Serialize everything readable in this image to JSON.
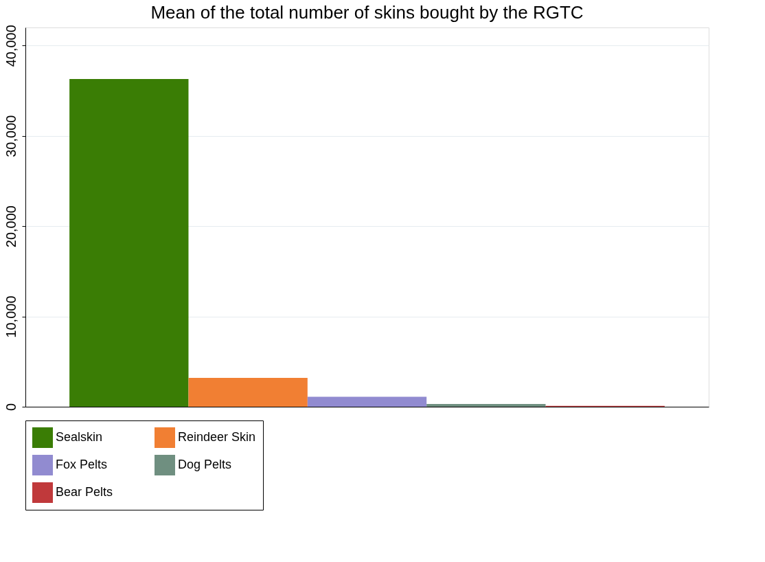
{
  "chart_data": {
    "type": "bar",
    "title": "Mean of the total number of skins bought by the RGTC",
    "categories": [
      null
    ],
    "series": [
      {
        "name": "Sealskin",
        "color": "#3a7d05",
        "values": [
          36300
        ]
      },
      {
        "name": "Reindeer Skin",
        "color": "#f17f33",
        "values": [
          3200
        ]
      },
      {
        "name": "Fox Pelts",
        "color": "#918bd0",
        "values": [
          1100
        ]
      },
      {
        "name": "Dog Pelts",
        "color": "#6f8f80",
        "values": [
          300
        ]
      },
      {
        "name": "Bear Pelts",
        "color": "#c0393b",
        "values": [
          100
        ]
      }
    ],
    "ylim": [
      0,
      42000
    ],
    "yticks": [
      {
        "value": 0,
        "label": "0"
      },
      {
        "value": 10000,
        "label": "10,000"
      },
      {
        "value": 20000,
        "label": "20,000"
      },
      {
        "value": 30000,
        "label": "30,000"
      },
      {
        "value": 40000,
        "label": "40,000"
      }
    ],
    "grid": "y",
    "legend": "bottom",
    "tick_labels": "y"
  }
}
